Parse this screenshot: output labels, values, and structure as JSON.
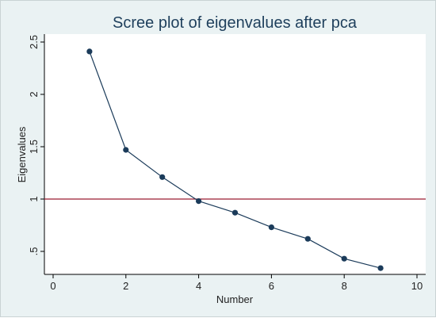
{
  "chart_data": {
    "type": "line",
    "title": "Scree plot of eigenvalues after pca",
    "xlabel": "Number",
    "ylabel": "Eigenvalues",
    "xlim": [
      0,
      10
    ],
    "ylim": [
      0.3,
      2.5
    ],
    "xticks": [
      0,
      2,
      4,
      6,
      8,
      10
    ],
    "xtick_labels": [
      "0",
      "2",
      "4",
      "6",
      "8",
      "10"
    ],
    "yticks": [
      0.5,
      1,
      1.5,
      2,
      2.5
    ],
    "ytick_labels": [
      ".5",
      "1",
      "1.5",
      "2",
      "2.5"
    ],
    "series": [
      {
        "x": [
          1,
          2,
          3,
          4,
          5,
          6,
          7,
          8,
          9
        ],
        "values": [
          2.41,
          1.47,
          1.21,
          0.98,
          0.87,
          0.73,
          0.62,
          0.43,
          0.34
        ]
      }
    ],
    "reference_line": {
      "y": 1,
      "color": "#9b1c31"
    },
    "colors": {
      "series": "#1b3b5a",
      "background": "#eaf2f3",
      "plot_background": "#ffffff",
      "axis": "#000000"
    },
    "grid": false
  }
}
